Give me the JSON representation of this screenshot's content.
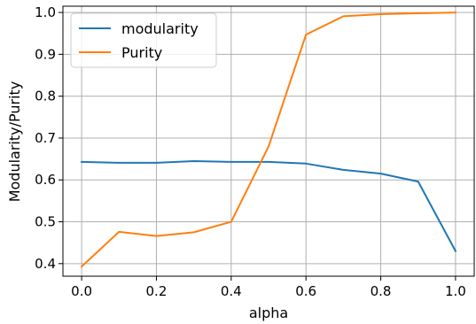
{
  "chart_data": {
    "type": "line",
    "title": "",
    "xlabel": "alpha",
    "ylabel": "Modularity/Purity",
    "x": [
      0.0,
      0.1,
      0.2,
      0.3,
      0.4,
      0.5,
      0.6,
      0.7,
      0.8,
      0.9,
      1.0
    ],
    "xlim": [
      -0.05,
      1.05
    ],
    "ylim": [
      0.37,
      1.015
    ],
    "xticks": [
      0.0,
      0.2,
      0.4,
      0.6,
      0.8,
      1.0
    ],
    "xtick_labels": [
      "0.0",
      "0.2",
      "0.4",
      "0.6",
      "0.8",
      "1.0"
    ],
    "yticks": [
      0.4,
      0.5,
      0.6,
      0.7,
      0.8,
      0.9,
      1.0
    ],
    "ytick_labels": [
      "0.4",
      "0.5",
      "0.6",
      "0.7",
      "0.8",
      "0.9",
      "1.0"
    ],
    "grid": true,
    "legend_position": "top-left",
    "series": [
      {
        "name": "modularity",
        "color": "#1f77b4",
        "values": [
          0.643,
          0.641,
          0.641,
          0.645,
          0.643,
          0.643,
          0.639,
          0.624,
          0.615,
          0.596,
          0.43
        ]
      },
      {
        "name": "Purity",
        "color": "#ff7f0e",
        "values": [
          0.393,
          0.476,
          0.466,
          0.475,
          0.5,
          0.68,
          0.947,
          0.991,
          0.996,
          0.998,
          1.0
        ]
      }
    ]
  }
}
